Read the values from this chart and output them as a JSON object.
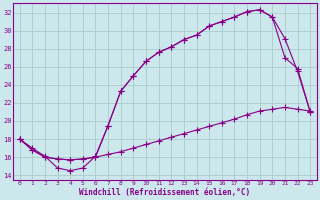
{
  "xlabel": "Windchill (Refroidissement éolien,°C)",
  "bg_color": "#cce8ec",
  "line_color": "#880088",
  "grid_color": "#aacccc",
  "xlim": [
    -0.5,
    23.5
  ],
  "ylim": [
    13.5,
    33
  ],
  "yticks": [
    14,
    16,
    18,
    20,
    22,
    24,
    26,
    28,
    30,
    32
  ],
  "xticks": [
    0,
    1,
    2,
    3,
    4,
    5,
    6,
    7,
    8,
    9,
    10,
    11,
    12,
    13,
    14,
    15,
    16,
    17,
    18,
    19,
    20,
    21,
    22,
    23
  ],
  "line1_x": [
    0,
    1,
    2,
    3,
    4,
    5,
    6,
    7,
    8,
    9,
    10,
    11,
    12,
    13,
    14,
    15,
    16,
    17,
    18,
    19,
    20,
    21,
    22,
    23
  ],
  "line1_y": [
    18,
    17,
    16.1,
    14.8,
    14.5,
    14.8,
    16.1,
    19.5,
    23.3,
    25.0,
    26.6,
    27.6,
    28.2,
    29.0,
    29.5,
    30.5,
    31.0,
    31.5,
    32.1,
    32.3,
    31.5,
    29.1,
    25.5,
    21.0
  ],
  "line2_x": [
    0,
    1,
    2,
    3,
    4,
    5,
    6,
    7,
    8,
    9,
    10,
    11,
    12,
    13,
    14,
    15,
    16,
    17,
    18,
    19,
    20,
    21,
    22,
    23
  ],
  "line2_y": [
    18.0,
    16.8,
    16.0,
    15.8,
    15.7,
    15.8,
    16.0,
    16.3,
    16.6,
    17.0,
    17.4,
    17.8,
    18.2,
    18.6,
    19.0,
    19.4,
    19.8,
    20.2,
    20.7,
    21.1,
    21.3,
    21.5,
    21.3,
    21.1
  ],
  "line3_x": [
    0,
    1,
    2,
    3,
    4,
    5,
    6,
    7,
    8,
    9,
    10,
    11,
    12,
    13,
    14,
    15,
    16,
    17,
    18,
    19,
    20,
    21,
    22,
    23
  ],
  "line3_y": [
    18.0,
    16.8,
    16.0,
    15.8,
    15.7,
    15.8,
    16.0,
    19.5,
    23.3,
    25.0,
    26.6,
    27.6,
    28.2,
    29.0,
    29.5,
    30.5,
    31.0,
    31.5,
    32.1,
    32.3,
    31.5,
    27.0,
    25.8,
    21.0
  ]
}
